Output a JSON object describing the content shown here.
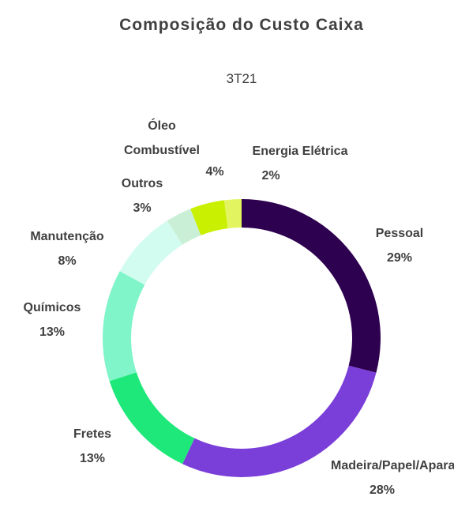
{
  "chart_data": {
    "type": "donut",
    "title": "Composição do Custo Caixa",
    "subtitle": "3T21",
    "categories": [
      "Pessoal",
      "Madeira/Papel/Aparas",
      "Fretes",
      "Químicos",
      "Manutenção",
      "Outros",
      "Óleo Combustível",
      "Energia Elétrica"
    ],
    "values": [
      29,
      28,
      13,
      13,
      8,
      3,
      4,
      2
    ],
    "value_labels": [
      "29%",
      "28%",
      "13%",
      "13%",
      "8%",
      "3%",
      "4%",
      "2%"
    ],
    "colors": [
      "#2d0050",
      "#7b3fd9",
      "#1fe87a",
      "#7ff5c9",
      "#d2fcef",
      "#c9f0d6",
      "#c8f000",
      "#e2f560"
    ]
  }
}
